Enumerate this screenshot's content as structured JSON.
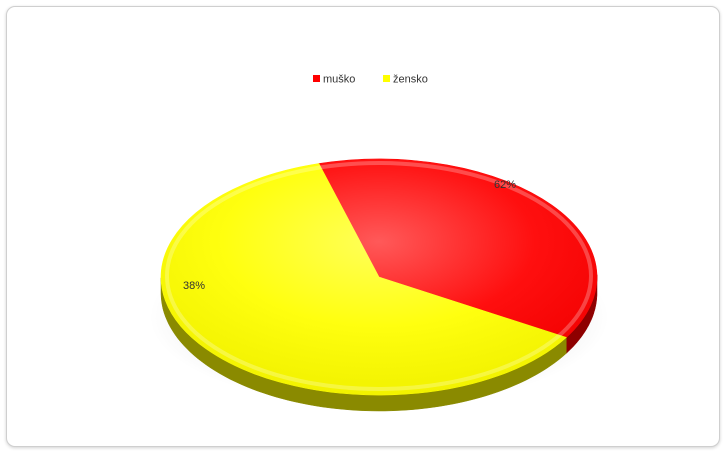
{
  "chart_data": {
    "type": "pie",
    "title": "",
    "legend_position": "top",
    "slices": [
      {
        "label": "muško",
        "value": 38,
        "data_label": "38%",
        "color": "#ff0000",
        "dark_color": "#8e0000"
      },
      {
        "label": "žensko",
        "value": 62,
        "data_label": "62%",
        "color": "#ffff00",
        "dark_color": "#8a8a00"
      }
    ]
  }
}
